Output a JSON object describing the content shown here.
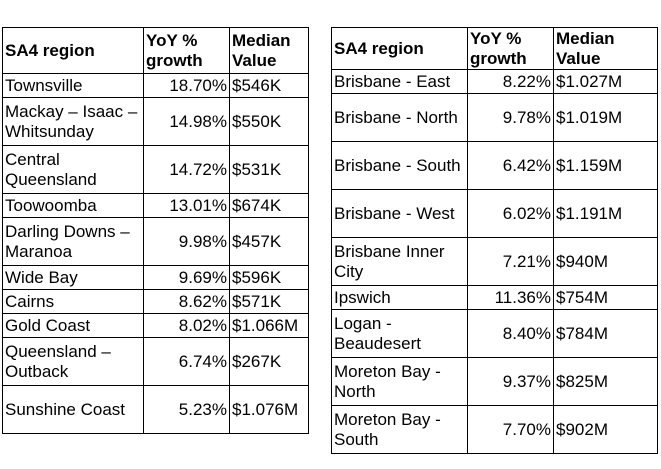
{
  "left_table": {
    "headers": {
      "region": "SA4 region",
      "growth": "YoY % growth",
      "median": "Median Value"
    },
    "rows": [
      {
        "region": "Townsville",
        "growth": "18.70%",
        "median": "$546K"
      },
      {
        "region": "Mackay – Isaac – Whitsunday",
        "growth": "14.98%",
        "median": "$550K"
      },
      {
        "region": "Central Queensland",
        "growth": "14.72%",
        "median": "$531K"
      },
      {
        "region": "Toowoomba",
        "growth": "13.01%",
        "median": "$674K"
      },
      {
        "region": "Darling Downs – Maranoa",
        "growth": "9.98%",
        "median": "$457K"
      },
      {
        "region": "Wide Bay",
        "growth": "9.69%",
        "median": "$596K"
      },
      {
        "region": "Cairns",
        "growth": "8.62%",
        "median": "$571K"
      },
      {
        "region": "Gold Coast",
        "growth": "8.02%",
        "median": "$1.066M"
      },
      {
        "region": "Queensland – Outback",
        "growth": "6.74%",
        "median": "$267K"
      },
      {
        "region": "Sunshine Coast",
        "growth": "5.23%",
        "median": "$1.076M"
      }
    ]
  },
  "right_table": {
    "headers": {
      "region": "SA4 region",
      "growth": "YoY % growth",
      "median": "Median Value"
    },
    "rows": [
      {
        "region": "Brisbane - East",
        "growth": "8.22%",
        "median": "$1.027M"
      },
      {
        "region": "Brisbane - North",
        "growth": "9.78%",
        "median": "$1.019M"
      },
      {
        "region": "Brisbane - South",
        "growth": "6.42%",
        "median": "$1.159M"
      },
      {
        "region": "Brisbane - West",
        "growth": "6.02%",
        "median": "$1.191M"
      },
      {
        "region": "Brisbane Inner City",
        "growth": "7.21%",
        "median": "$940M"
      },
      {
        "region": "Ipswich",
        "growth": "11.36%",
        "median": "$754M"
      },
      {
        "region": "Logan - Beaudesert",
        "growth": "8.40%",
        "median": "$784M"
      },
      {
        "region": "Moreton Bay - North",
        "growth": "9.37%",
        "median": "$825M"
      },
      {
        "region": "Moreton Bay - South",
        "growth": "7.70%",
        "median": "$902M"
      }
    ]
  }
}
